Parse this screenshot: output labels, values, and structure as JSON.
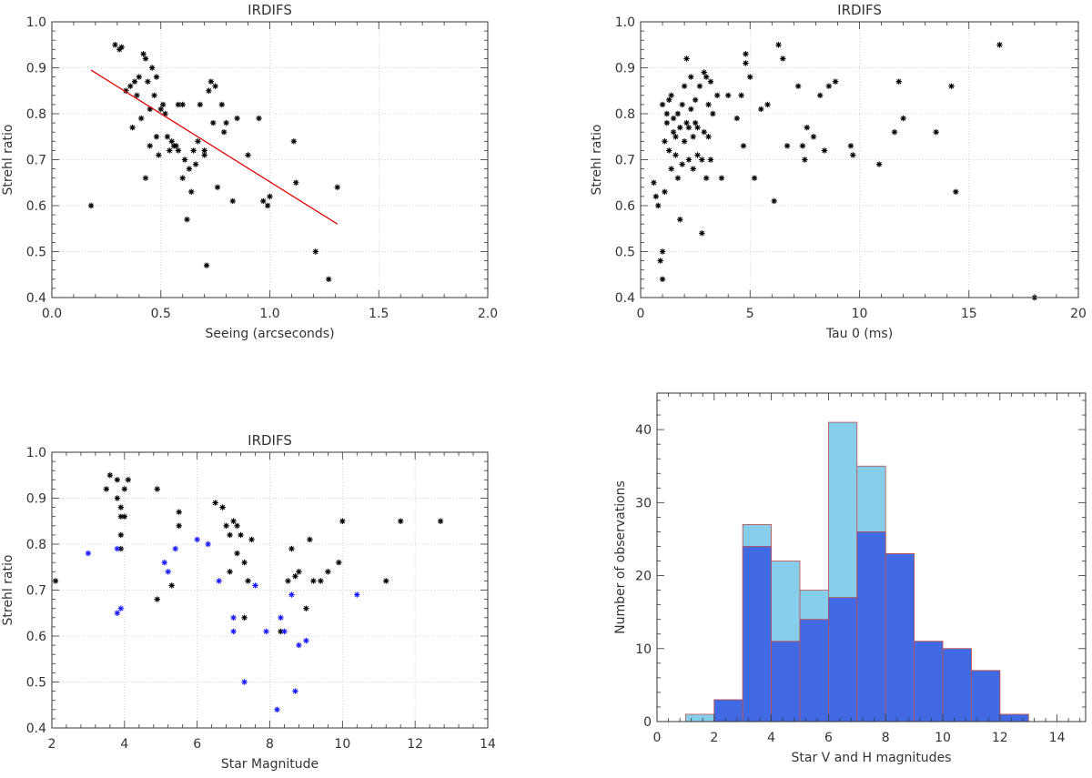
{
  "chart_data": [
    {
      "type": "scatter",
      "title": "IRDIFS",
      "xlabel": "Seeing (arcseconds)",
      "ylabel": "Strehl ratio",
      "xlim": [
        0,
        2
      ],
      "ylim": [
        0.4,
        1.0
      ],
      "xticks": [
        "0.0",
        "0.5",
        "1.0",
        "1.5",
        "2.0"
      ],
      "yticks": [
        "0.4",
        "0.5",
        "0.6",
        "0.7",
        "0.8",
        "0.9",
        "1.0"
      ],
      "grid": true,
      "series": [
        {
          "marker": "*",
          "color": "#000000",
          "points": [
            [
              0.18,
              0.6
            ],
            [
              0.29,
              0.95
            ],
            [
              0.31,
              0.94
            ],
            [
              0.32,
              0.945
            ],
            [
              0.34,
              0.85
            ],
            [
              0.36,
              0.86
            ],
            [
              0.37,
              0.77
            ],
            [
              0.38,
              0.87
            ],
            [
              0.39,
              0.84
            ],
            [
              0.4,
              0.88
            ],
            [
              0.41,
              0.79
            ],
            [
              0.42,
              0.93
            ],
            [
              0.43,
              0.92
            ],
            [
              0.43,
              0.66
            ],
            [
              0.44,
              0.87
            ],
            [
              0.45,
              0.81
            ],
            [
              0.45,
              0.73
            ],
            [
              0.46,
              0.9
            ],
            [
              0.47,
              0.84
            ],
            [
              0.48,
              0.88
            ],
            [
              0.48,
              0.75
            ],
            [
              0.49,
              0.71
            ],
            [
              0.5,
              0.81
            ],
            [
              0.51,
              0.82
            ],
            [
              0.52,
              0.8
            ],
            [
              0.53,
              0.75
            ],
            [
              0.54,
              0.72
            ],
            [
              0.55,
              0.74
            ],
            [
              0.56,
              0.73
            ],
            [
              0.57,
              0.73
            ],
            [
              0.58,
              0.72
            ],
            [
              0.58,
              0.82
            ],
            [
              0.6,
              0.82
            ],
            [
              0.6,
              0.66
            ],
            [
              0.61,
              0.7
            ],
            [
              0.62,
              0.57
            ],
            [
              0.63,
              0.68
            ],
            [
              0.64,
              0.63
            ],
            [
              0.65,
              0.72
            ],
            [
              0.66,
              0.69
            ],
            [
              0.67,
              0.74
            ],
            [
              0.68,
              0.82
            ],
            [
              0.7,
              0.72
            ],
            [
              0.7,
              0.71
            ],
            [
              0.71,
              0.47
            ],
            [
              0.72,
              0.85
            ],
            [
              0.73,
              0.87
            ],
            [
              0.74,
              0.78
            ],
            [
              0.75,
              0.86
            ],
            [
              0.76,
              0.64
            ],
            [
              0.78,
              0.82
            ],
            [
              0.79,
              0.76
            ],
            [
              0.8,
              0.78
            ],
            [
              0.83,
              0.61
            ],
            [
              0.85,
              0.79
            ],
            [
              0.9,
              0.71
            ],
            [
              0.95,
              0.79
            ],
            [
              0.97,
              0.61
            ],
            [
              0.99,
              0.6
            ],
            [
              1.0,
              0.62
            ],
            [
              1.11,
              0.74
            ],
            [
              1.12,
              0.65
            ],
            [
              1.21,
              0.5
            ],
            [
              1.27,
              0.44
            ],
            [
              1.31,
              0.64
            ]
          ]
        }
      ],
      "fit_line": {
        "color": "#e00000",
        "x": [
          0.18,
          1.31
        ],
        "y": [
          0.895,
          0.56
        ]
      }
    },
    {
      "type": "scatter",
      "title": "IRDIFS",
      "xlabel": "Tau 0 (ms)",
      "ylabel": "Strehl ratio",
      "xlim": [
        0,
        20
      ],
      "ylim": [
        0.4,
        1.0
      ],
      "xticks": [
        "0",
        "5",
        "10",
        "15",
        "20"
      ],
      "yticks": [
        "0.4",
        "0.5",
        "0.6",
        "0.7",
        "0.8",
        "0.9",
        "1.0"
      ],
      "grid": true,
      "series": [
        {
          "marker": "*",
          "color": "#000000",
          "points": [
            [
              0.6,
              0.65
            ],
            [
              0.7,
              0.62
            ],
            [
              0.8,
              0.6
            ],
            [
              0.9,
              0.48
            ],
            [
              1.0,
              0.44
            ],
            [
              1.0,
              0.5
            ],
            [
              1.0,
              0.82
            ],
            [
              1.1,
              0.63
            ],
            [
              1.1,
              0.74
            ],
            [
              1.2,
              0.78
            ],
            [
              1.2,
              0.8
            ],
            [
              1.3,
              0.72
            ],
            [
              1.3,
              0.83
            ],
            [
              1.4,
              0.84
            ],
            [
              1.4,
              0.68
            ],
            [
              1.5,
              0.76
            ],
            [
              1.5,
              0.79
            ],
            [
              1.6,
              0.71
            ],
            [
              1.6,
              0.75
            ],
            [
              1.7,
              0.8
            ],
            [
              1.7,
              0.66
            ],
            [
              1.8,
              0.57
            ],
            [
              1.8,
              0.77
            ],
            [
              1.9,
              0.69
            ],
            [
              1.9,
              0.82
            ],
            [
              2.0,
              0.74
            ],
            [
              2.0,
              0.86
            ],
            [
              2.1,
              0.78
            ],
            [
              2.1,
              0.92
            ],
            [
              2.2,
              0.7
            ],
            [
              2.2,
              0.77
            ],
            [
              2.3,
              0.81
            ],
            [
              2.3,
              0.88
            ],
            [
              2.4,
              0.75
            ],
            [
              2.4,
              0.68
            ],
            [
              2.5,
              0.78
            ],
            [
              2.5,
              0.83
            ],
            [
              2.6,
              0.71
            ],
            [
              2.6,
              0.77
            ],
            [
              2.7,
              0.86
            ],
            [
              2.8,
              0.7
            ],
            [
              2.8,
              0.54
            ],
            [
              2.9,
              0.89
            ],
            [
              2.9,
              0.76
            ],
            [
              3.0,
              0.88
            ],
            [
              3.0,
              0.66
            ],
            [
              3.1,
              0.75
            ],
            [
              3.1,
              0.82
            ],
            [
              3.2,
              0.7
            ],
            [
              3.2,
              0.87
            ],
            [
              3.3,
              0.8
            ],
            [
              3.5,
              0.84
            ],
            [
              3.7,
              0.66
            ],
            [
              4.0,
              0.84
            ],
            [
              4.4,
              0.79
            ],
            [
              4.6,
              0.84
            ],
            [
              4.7,
              0.73
            ],
            [
              4.8,
              0.91
            ],
            [
              4.8,
              0.93
            ],
            [
              5.0,
              0.88
            ],
            [
              5.2,
              0.66
            ],
            [
              5.5,
              0.81
            ],
            [
              5.8,
              0.82
            ],
            [
              6.1,
              0.61
            ],
            [
              6.3,
              0.95
            ],
            [
              6.5,
              0.92
            ],
            [
              6.7,
              0.73
            ],
            [
              7.2,
              0.86
            ],
            [
              7.4,
              0.73
            ],
            [
              7.5,
              0.7
            ],
            [
              7.6,
              0.77
            ],
            [
              7.9,
              0.75
            ],
            [
              8.2,
              0.84
            ],
            [
              8.4,
              0.72
            ],
            [
              8.6,
              0.86
            ],
            [
              8.9,
              0.87
            ],
            [
              9.6,
              0.73
            ],
            [
              9.7,
              0.71
            ],
            [
              10.9,
              0.69
            ],
            [
              11.6,
              0.76
            ],
            [
              11.8,
              0.87
            ],
            [
              12.0,
              0.79
            ],
            [
              13.5,
              0.76
            ],
            [
              14.2,
              0.86
            ],
            [
              14.4,
              0.63
            ],
            [
              16.4,
              0.95
            ],
            [
              18.0,
              0.4
            ]
          ]
        }
      ]
    },
    {
      "type": "scatter",
      "title": "IRDIFS",
      "xlabel": "Star Magnitude",
      "ylabel": "Strehl ratio",
      "xlim": [
        2,
        14
      ],
      "ylim": [
        0.4,
        1.0
      ],
      "xticks": [
        "2",
        "4",
        "6",
        "8",
        "10",
        "12",
        "14"
      ],
      "yticks": [
        "0.4",
        "0.5",
        "0.6",
        "0.7",
        "0.8",
        "0.9",
        "1.0"
      ],
      "grid": true,
      "series": [
        {
          "marker": "*",
          "color": "#000000",
          "points": [
            [
              2.1,
              0.72
            ],
            [
              3.5,
              0.92
            ],
            [
              3.6,
              0.95
            ],
            [
              3.8,
              0.94
            ],
            [
              3.8,
              0.9
            ],
            [
              3.9,
              0.88
            ],
            [
              3.9,
              0.86
            ],
            [
              3.9,
              0.82
            ],
            [
              3.9,
              0.79
            ],
            [
              4.0,
              0.86
            ],
            [
              4.0,
              0.92
            ],
            [
              4.1,
              0.94
            ],
            [
              4.9,
              0.92
            ],
            [
              4.9,
              0.68
            ],
            [
              5.3,
              0.71
            ],
            [
              5.5,
              0.87
            ],
            [
              5.5,
              0.84
            ],
            [
              6.5,
              0.89
            ],
            [
              6.7,
              0.88
            ],
            [
              6.8,
              0.84
            ],
            [
              6.9,
              0.74
            ],
            [
              6.9,
              0.82
            ],
            [
              7.0,
              0.85
            ],
            [
              7.1,
              0.84
            ],
            [
              7.1,
              0.78
            ],
            [
              7.2,
              0.82
            ],
            [
              7.3,
              0.76
            ],
            [
              7.3,
              0.64
            ],
            [
              7.4,
              0.72
            ],
            [
              7.5,
              0.81
            ],
            [
              8.3,
              0.61
            ],
            [
              8.5,
              0.72
            ],
            [
              8.6,
              0.79
            ],
            [
              8.7,
              0.73
            ],
            [
              8.8,
              0.74
            ],
            [
              9.0,
              0.66
            ],
            [
              9.1,
              0.81
            ],
            [
              9.2,
              0.72
            ],
            [
              9.4,
              0.72
            ],
            [
              9.6,
              0.74
            ],
            [
              9.9,
              0.76
            ],
            [
              10.0,
              0.85
            ],
            [
              11.2,
              0.72
            ],
            [
              11.6,
              0.85
            ],
            [
              12.7,
              0.85
            ]
          ]
        },
        {
          "marker": "*",
          "color": "#1c1cff",
          "points": [
            [
              3.0,
              0.78
            ],
            [
              3.8,
              0.65
            ],
            [
              3.9,
              0.66
            ],
            [
              3.8,
              0.79
            ],
            [
              5.1,
              0.76
            ],
            [
              5.2,
              0.74
            ],
            [
              5.4,
              0.79
            ],
            [
              6.0,
              0.81
            ],
            [
              6.3,
              0.8
            ],
            [
              6.6,
              0.72
            ],
            [
              7.0,
              0.64
            ],
            [
              7.0,
              0.61
            ],
            [
              7.3,
              0.5
            ],
            [
              7.6,
              0.71
            ],
            [
              7.9,
              0.61
            ],
            [
              8.2,
              0.44
            ],
            [
              8.3,
              0.64
            ],
            [
              8.4,
              0.61
            ],
            [
              8.6,
              0.69
            ],
            [
              8.7,
              0.48
            ],
            [
              8.8,
              0.58
            ],
            [
              9.0,
              0.59
            ],
            [
              10.4,
              0.69
            ]
          ]
        }
      ]
    },
    {
      "type": "bar",
      "title": "",
      "xlabel": "Star V and H magnitudes",
      "ylabel": "Number of observations",
      "xlim": [
        0,
        15
      ],
      "ylim": [
        0,
        45
      ],
      "xticks": [
        "0",
        "2",
        "4",
        "6",
        "8",
        "10",
        "12",
        "14"
      ],
      "yticks": [
        "0",
        "10",
        "20",
        "30",
        "40"
      ],
      "bin_edges": [
        0,
        1,
        2,
        3,
        4,
        5,
        6,
        7,
        8,
        9,
        10,
        11,
        12,
        13,
        14
      ],
      "series": [
        {
          "color": "#87ceeb",
          "values": [
            0,
            1,
            3,
            27,
            22,
            18,
            41,
            35,
            23,
            11,
            10,
            7,
            1,
            0
          ]
        },
        {
          "color": "#4169e1",
          "values": [
            0,
            0,
            3,
            24,
            11,
            14,
            17,
            26,
            23,
            11,
            10,
            7,
            1,
            0
          ]
        }
      ]
    }
  ]
}
